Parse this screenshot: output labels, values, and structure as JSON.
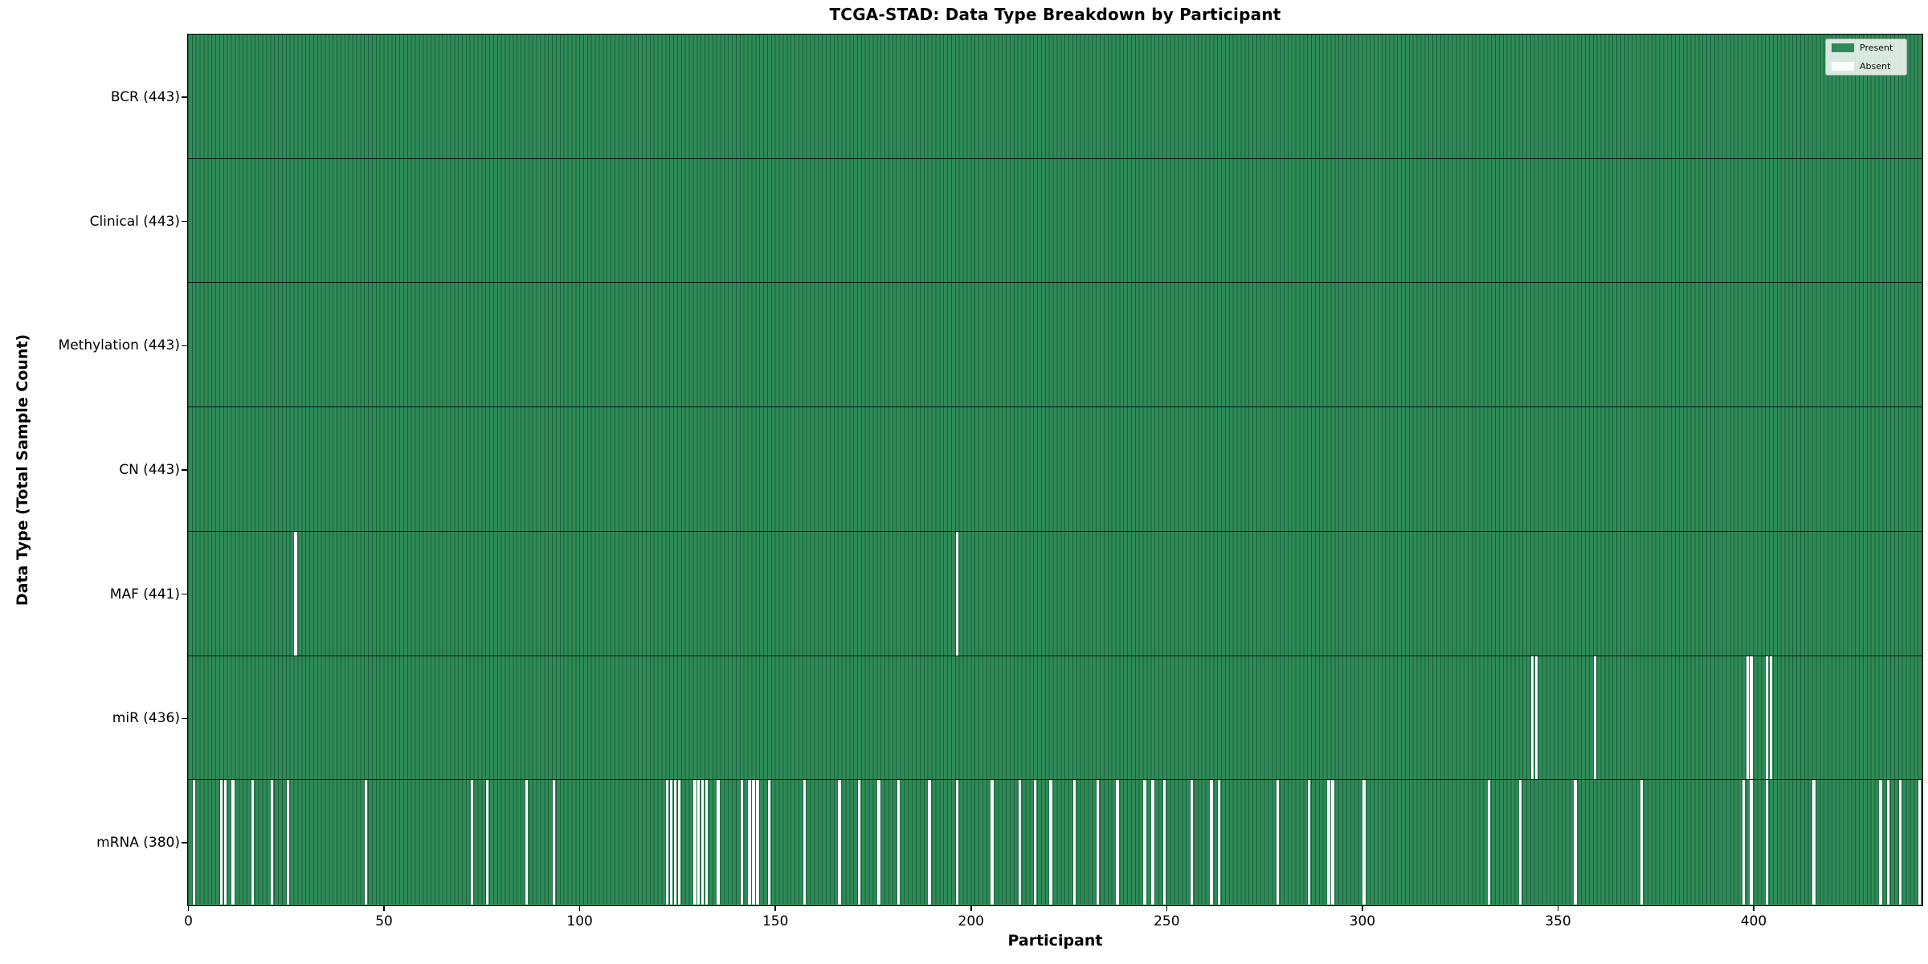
{
  "chart_data": {
    "type": "heatmap",
    "title": "TCGA-STAD: Data Type Breakdown by Participant",
    "xlabel": "Participant",
    "ylabel": "Data Type (Total Sample Count)",
    "n_participants": 443,
    "xlim": [
      0,
      443
    ],
    "x_ticks": [
      0,
      50,
      100,
      150,
      200,
      250,
      300,
      350,
      400
    ],
    "grid": false,
    "legend_position": "upper right",
    "legend": [
      {
        "label": "Present",
        "color": "#2e8b57"
      },
      {
        "label": "Absent",
        "color": "#ffffff"
      }
    ],
    "colors": {
      "present_fill": "#2e8b57",
      "cell_edge": "#1d5e3c",
      "absent_fill": "#ffffff",
      "row_separator": "#000000",
      "plot_border": "#000000"
    },
    "rows": [
      {
        "label": "BCR (443)",
        "data_type": "BCR",
        "total_samples": 443,
        "absent_participants": []
      },
      {
        "label": "Clinical (443)",
        "data_type": "Clinical",
        "total_samples": 443,
        "absent_participants": []
      },
      {
        "label": "Methylation (443)",
        "data_type": "Methylation",
        "total_samples": 443,
        "absent_participants": []
      },
      {
        "label": "CN (443)",
        "data_type": "CN",
        "total_samples": 443,
        "absent_participants": []
      },
      {
        "label": "MAF (441)",
        "data_type": "MAF",
        "total_samples": 441,
        "absent_participants": [
          27,
          196
        ]
      },
      {
        "label": "miR (436)",
        "data_type": "miR",
        "total_samples": 436,
        "absent_participants": [
          343,
          344,
          359,
          398,
          399,
          403,
          404
        ]
      },
      {
        "label": "mRNA (380)",
        "data_type": "mRNA",
        "total_samples": 380,
        "absent_participants": [
          1,
          8,
          9,
          11,
          16,
          21,
          25,
          45,
          72,
          76,
          86,
          93,
          122,
          123,
          124,
          125,
          129,
          130,
          131,
          132,
          135,
          141,
          143,
          144,
          145,
          148,
          157,
          166,
          171,
          176,
          181,
          189,
          196,
          205,
          212,
          216,
          220,
          226,
          232,
          237,
          244,
          246,
          249,
          256,
          261,
          263,
          278,
          286,
          291,
          292,
          300,
          332,
          340,
          354,
          371,
          397,
          399,
          403,
          415,
          432,
          434,
          437,
          442
        ]
      }
    ]
  }
}
